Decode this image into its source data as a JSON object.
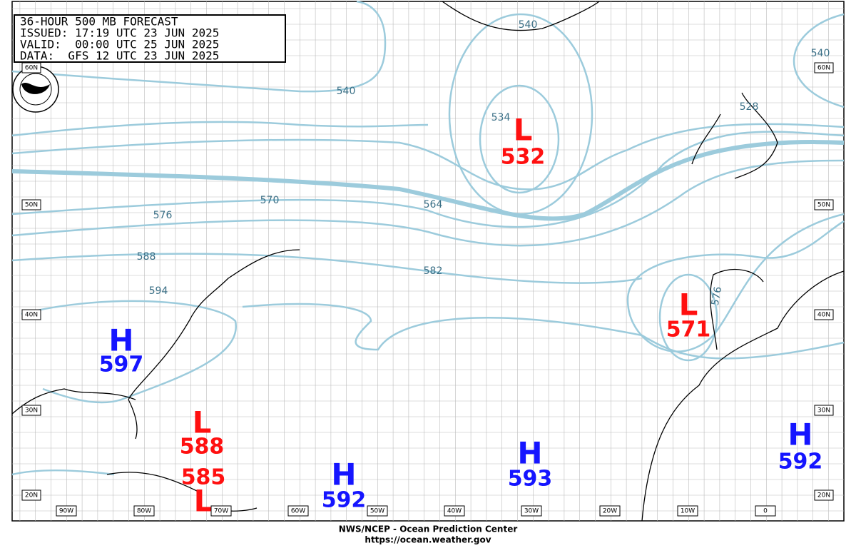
{
  "header": {
    "lines": [
      "36-HOUR 500 MB FORECAST",
      "ISSUED: 17:19 UTC 23 JUN 2025",
      "VALID:  00:00 UTC 25 JUN 2025",
      "DATA:  GFS 12 UTC 23 JUN 2025"
    ]
  },
  "systems": [
    {
      "letter": "H",
      "value": 597
    },
    {
      "letter": "L",
      "value": 532
    },
    {
      "letter": "L",
      "value": 588
    },
    {
      "letter": "L",
      "value": 585
    },
    {
      "letter": "H",
      "value": 592
    },
    {
      "letter": "H",
      "value": 593
    },
    {
      "letter": "H",
      "value": 592
    },
    {
      "letter": "L",
      "value": 571
    }
  ],
  "contour_labels": [
    540,
    540,
    534,
    528,
    540,
    564,
    570,
    576,
    588,
    594,
    582,
    576
  ],
  "longitudes": [
    "90W",
    "80W",
    "70W",
    "60W",
    "50W",
    "40W",
    "30W",
    "20W",
    "10W",
    "0"
  ],
  "latitudes": [
    "60N",
    "50N",
    "40N",
    "30N",
    "20N"
  ],
  "footer": {
    "agency": "NWS/NCEP - Ocean Prediction Center",
    "url": "https://ocean.weather.gov"
  }
}
